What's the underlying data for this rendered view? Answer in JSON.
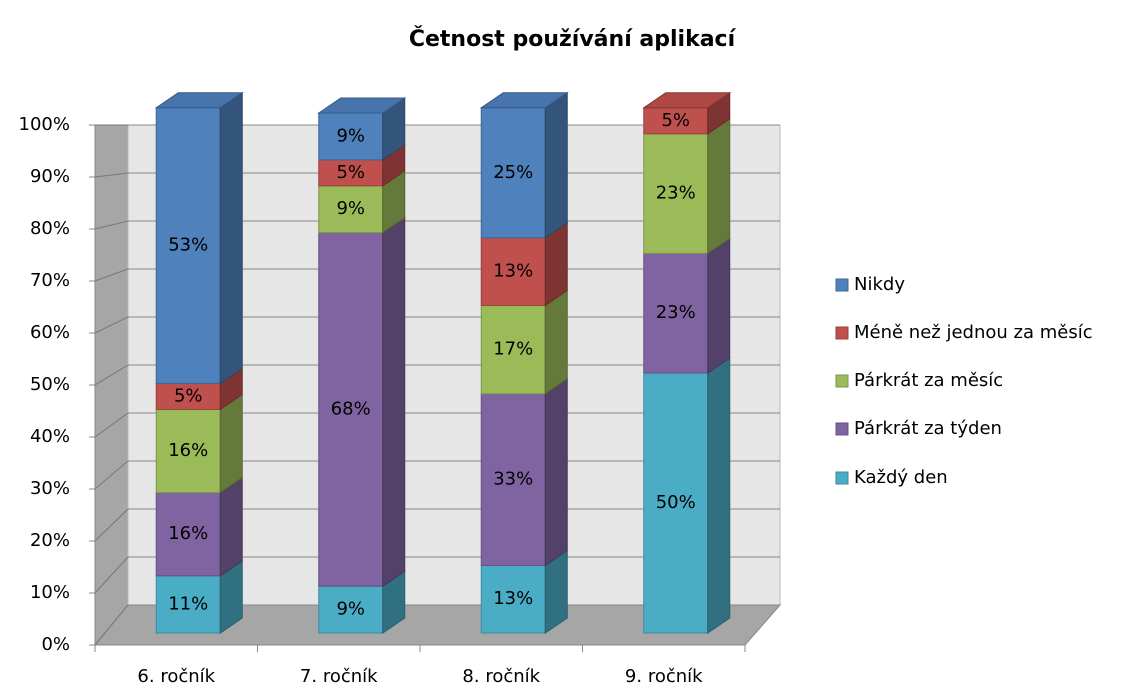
{
  "chart_data": {
    "type": "bar3d_stacked",
    "title": "Četnost používání aplikací",
    "categories": [
      "6. ročník",
      "7. ročník",
      "8. ročník",
      "9. ročník"
    ],
    "series": [
      {
        "name": "Každý den",
        "color": "#4bacc6",
        "values": [
          11,
          9,
          13,
          50
        ],
        "value_labels": [
          "11%",
          "9%",
          "13%",
          "50%"
        ]
      },
      {
        "name": "Párkrát za týden",
        "color": "#8064a2",
        "values": [
          16,
          68,
          33,
          23
        ],
        "value_labels": [
          "16%",
          "68%",
          "33%",
          "23%"
        ]
      },
      {
        "name": "Párkrát za měsíc",
        "color": "#9bbb59",
        "values": [
          16,
          9,
          17,
          23
        ],
        "value_labels": [
          "16%",
          "9%",
          "17%",
          "23%"
        ]
      },
      {
        "name": "Méně než jednou za měsíc",
        "color": "#c0504d",
        "values": [
          5,
          5,
          13,
          5
        ],
        "value_labels": [
          "5%",
          "5%",
          "13%",
          "5%"
        ]
      },
      {
        "name": "Nikdy",
        "color": "#4f81bd",
        "values": [
          53,
          9,
          25,
          null
        ],
        "value_labels": [
          "53%",
          "9%",
          "25%",
          null
        ]
      }
    ],
    "ylim": [
      0,
      100
    ],
    "yticks": [
      {
        "value": 0,
        "label": "0%"
      },
      {
        "value": 10,
        "label": "10%"
      },
      {
        "value": 20,
        "label": "20%"
      },
      {
        "value": 30,
        "label": "30%"
      },
      {
        "value": 40,
        "label": "40%"
      },
      {
        "value": 50,
        "label": "50%"
      },
      {
        "value": 60,
        "label": "60%"
      },
      {
        "value": 70,
        "label": "70%"
      },
      {
        "value": 80,
        "label": "80%"
      },
      {
        "value": 90,
        "label": "90%"
      },
      {
        "value": 100,
        "label": "100%"
      }
    ],
    "grid": true
  }
}
